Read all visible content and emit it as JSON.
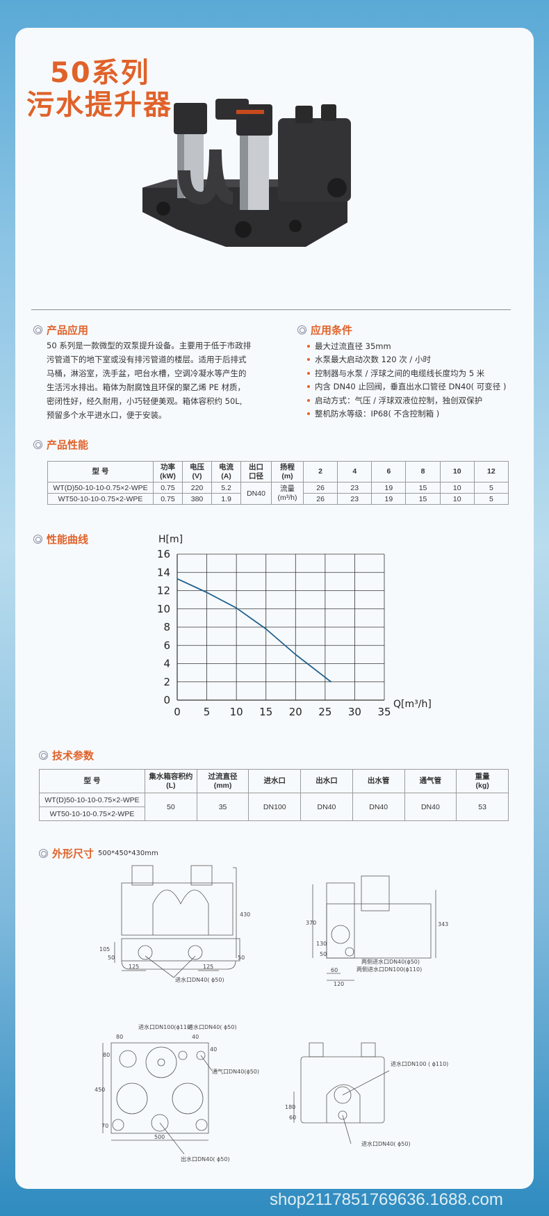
{
  "header": {
    "title_line1": "50系列",
    "title_line2": "污水提升器"
  },
  "application": {
    "heading": "产品应用",
    "text": "50 系列是一款微型的双泵提升设备。主要用于低于市政排污管道下的地下室或没有排污管道的楼层。适用于后排式马桶，淋浴室，洗手盆，吧台水槽，空调冷凝水等产生的生活污水排出。箱体为耐腐蚀且环保的聚乙烯 PE 材质，密闭性好，经久耐用，小巧轻便美观。箱体容积约 50L, 预留多个水平进水口，便于安装。"
  },
  "conditions": {
    "heading": "应用条件",
    "items": [
      "最大过流直径 35mm",
      "水泵最大启动次数 120 次 / 小时",
      "控制器与水泵 / 浮球之间的电缆线长度均为 5 米",
      "内含 DN40 止回阀，垂直出水口管径 DN40( 可变径 )",
      "启动方式：气压 / 浮球双液位控制，独创双保护",
      "整机防水等级：IP68( 不含控制箱 )"
    ]
  },
  "performance": {
    "heading": "产品性能",
    "headers": [
      "型 号",
      "功率\n(kW)",
      "电压\n(V)",
      "电流\n(A)",
      "出口\n口径",
      "扬程\n(m)",
      "2",
      "4",
      "6",
      "8",
      "10",
      "12"
    ],
    "outlet": "DN40",
    "flow_label": "流量\n(m³/h)",
    "rows": [
      {
        "model": "WT(D)50-10-10-0.75×2-WPE",
        "power": "0.75",
        "voltage": "220",
        "current": "5.2",
        "flows": [
          "26",
          "23",
          "19",
          "15",
          "10",
          "5"
        ]
      },
      {
        "model": "WT50-10-10-0.75×2-WPE",
        "power": "0.75",
        "voltage": "380",
        "current": "1.9",
        "flows": [
          "26",
          "23",
          "19",
          "15",
          "10",
          "5"
        ]
      }
    ]
  },
  "curve": {
    "heading": "性能曲线"
  },
  "chart_data": {
    "type": "line",
    "xlabel": "Q[m³/h]",
    "ylabel": "H[m]",
    "xlim": [
      0,
      35
    ],
    "ylim": [
      0,
      16
    ],
    "xticks": [
      0,
      5,
      10,
      15,
      20,
      25,
      30,
      35
    ],
    "yticks": [
      0,
      2,
      4,
      6,
      8,
      10,
      12,
      14,
      16
    ],
    "grid": true,
    "series": [
      {
        "x": [
          0,
          5,
          10,
          15,
          20,
          25,
          26
        ],
        "y": [
          13.3,
          11.8,
          10.1,
          7.8,
          5,
          2.5,
          2
        ],
        "color": "#1f5f8b"
      }
    ]
  },
  "tech": {
    "heading": "技术参数",
    "headers": [
      "型 号",
      "集水箱容积约\n(L)",
      "过流直径\n(mm)",
      "进水口",
      "出水口",
      "出水管",
      "通气管",
      "重量\n(kg)"
    ],
    "models": [
      "WT(D)50-10-10-0.75×2-WPE",
      "WT50-10-10-0.75×2-WPE"
    ],
    "values": [
      "50",
      "35",
      "DN100",
      "DN40",
      "DN40",
      "DN40",
      "53"
    ]
  },
  "dimensions": {
    "heading": "外形尺寸",
    "size": "500*450*430mm",
    "front": {
      "h": "430",
      "h1": "105",
      "h2": "50",
      "h3": "50",
      "w1": "125",
      "w2": "125",
      "inlet": "进水口DN40( ϕ50)"
    },
    "side": {
      "h1": "370",
      "h2": "343",
      "h3": "130",
      "h4": "50",
      "w1": "60",
      "w2": "120",
      "inlet1": "两侧进水口DN40(ϕ50)",
      "inlet2": "两侧进水口DN100(ϕ110)"
    },
    "top": {
      "w": "500",
      "h": "450",
      "a": "80",
      "b": "80",
      "c": "40",
      "d": "40",
      "e": "70",
      "inlet1": "进水口DN100(ϕ110)",
      "inlet2": "进水口DN40( ϕ50)",
      "vent": "通气口DN40(ϕ50)",
      "outlet": "出水口DN40( ϕ50)"
    },
    "back": {
      "h1": "180",
      "h2": "60",
      "inlet1": "进水口DN100\n( ϕ110)",
      "inlet2": "进水口DN40( ϕ50)"
    }
  },
  "watermark": "shop2117851769636.1688.com"
}
